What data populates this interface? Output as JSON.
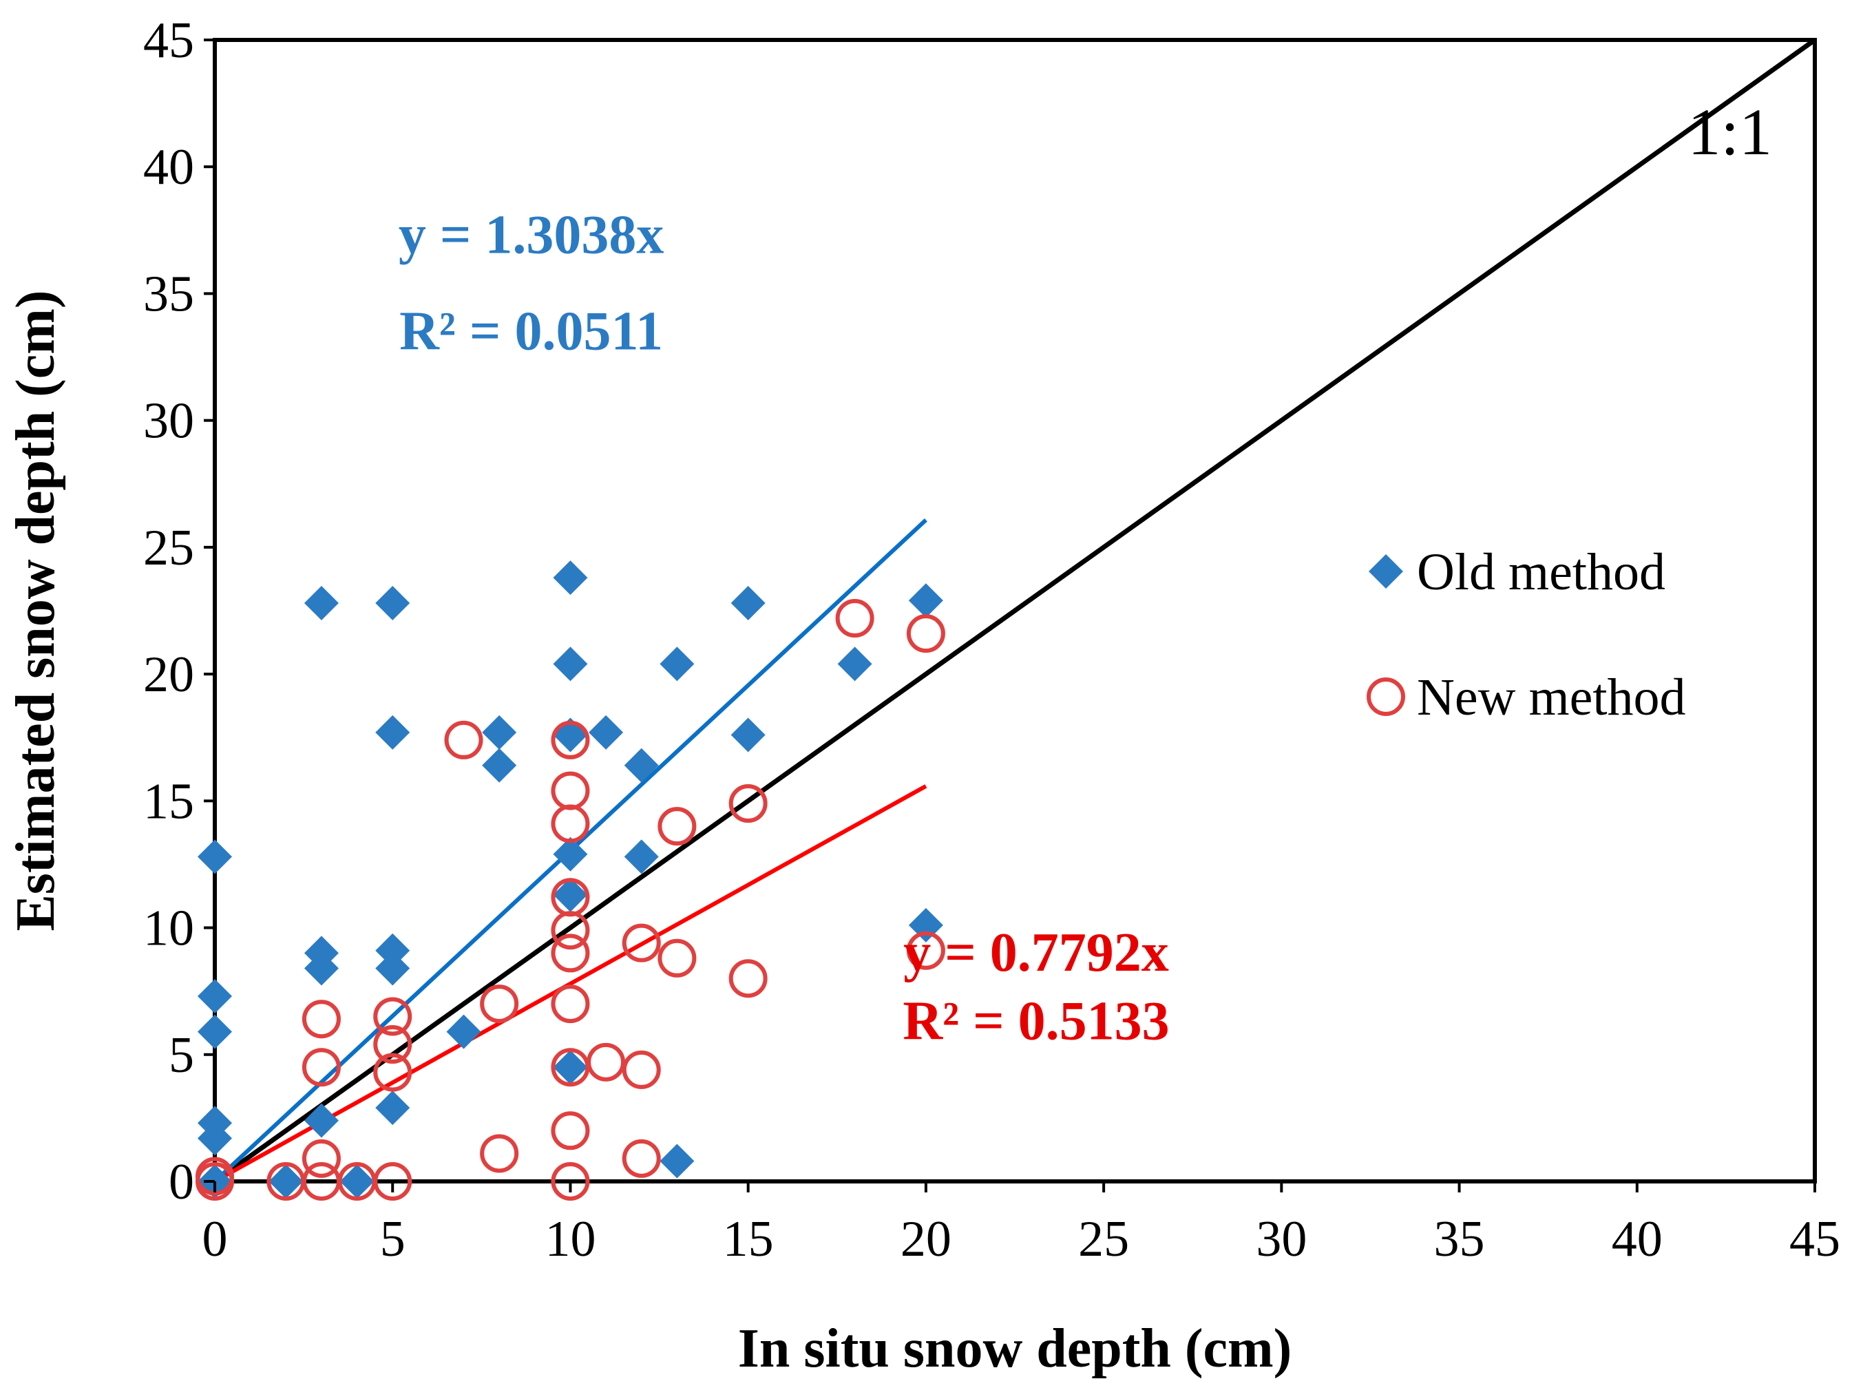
{
  "chart_data": {
    "type": "scatter",
    "title": "",
    "xlabel": "In situ snow depth (cm)",
    "ylabel": "Estimated snow depth (cm)",
    "xlim": [
      0,
      45
    ],
    "ylim": [
      0,
      45
    ],
    "xticks": [
      0,
      5,
      10,
      15,
      20,
      25,
      30,
      35,
      40,
      45
    ],
    "yticks": [
      0,
      5,
      10,
      15,
      20,
      25,
      30,
      35,
      40,
      45
    ],
    "grid": false,
    "legend_position": "right-middle",
    "series": [
      {
        "name": "Old method",
        "marker": "diamond",
        "color": "#2b7bc3",
        "points": [
          [
            0,
            12.8
          ],
          [
            0,
            7.3
          ],
          [
            0,
            5.9
          ],
          [
            0,
            2.3
          ],
          [
            0,
            1.7
          ],
          [
            0,
            0
          ],
          [
            2,
            0
          ],
          [
            3,
            22.8
          ],
          [
            3,
            9.0
          ],
          [
            3,
            8.4
          ],
          [
            3,
            2.4
          ],
          [
            4,
            0
          ],
          [
            5,
            22.8
          ],
          [
            5,
            17.7
          ],
          [
            5,
            9.1
          ],
          [
            5,
            8.4
          ],
          [
            5,
            2.9
          ],
          [
            7,
            5.9
          ],
          [
            8,
            17.7
          ],
          [
            8,
            16.4
          ],
          [
            10,
            23.8
          ],
          [
            10,
            20.4
          ],
          [
            10,
            17.6
          ],
          [
            10,
            12.9
          ],
          [
            10,
            11.3
          ],
          [
            10,
            4.5
          ],
          [
            11,
            17.7
          ],
          [
            12,
            16.4
          ],
          [
            12,
            12.8
          ],
          [
            13,
            20.4
          ],
          [
            13,
            0.8
          ],
          [
            15,
            22.8
          ],
          [
            15,
            17.6
          ],
          [
            18,
            20.4
          ],
          [
            20,
            22.9
          ],
          [
            20,
            10.1
          ]
        ]
      },
      {
        "name": "New method",
        "marker": "open-circle",
        "color": "#e04040",
        "points": [
          [
            0,
            0.2
          ],
          [
            0,
            0
          ],
          [
            2,
            0
          ],
          [
            3,
            6.4
          ],
          [
            3,
            4.5
          ],
          [
            3,
            0.9
          ],
          [
            3,
            0
          ],
          [
            4,
            0
          ],
          [
            5,
            6.5
          ],
          [
            5,
            5.4
          ],
          [
            5,
            4.3
          ],
          [
            5,
            0
          ],
          [
            7,
            17.4
          ],
          [
            8,
            7.0
          ],
          [
            8,
            1.1
          ],
          [
            10,
            17.4
          ],
          [
            10,
            15.4
          ],
          [
            10,
            14.1
          ],
          [
            10,
            11.2
          ],
          [
            10,
            9.9
          ],
          [
            10,
            9.0
          ],
          [
            10,
            7.0
          ],
          [
            10,
            4.5
          ],
          [
            10,
            2.0
          ],
          [
            10,
            0
          ],
          [
            11,
            4.7
          ],
          [
            12,
            9.4
          ],
          [
            12,
            4.4
          ],
          [
            12,
            0.9
          ],
          [
            13,
            14.0
          ],
          [
            13,
            8.8
          ],
          [
            15,
            14.9
          ],
          [
            15,
            8.0
          ],
          [
            18,
            22.2
          ],
          [
            20,
            21.6
          ],
          [
            20,
            9.1
          ]
        ]
      }
    ],
    "trendlines": [
      {
        "series": "Old method",
        "slope": 1.3038,
        "x_range": [
          0,
          20
        ],
        "color": "#0a70c8",
        "equation": "y = 1.3038x",
        "r2": "R² = 0.0511"
      },
      {
        "series": "New method",
        "slope": 0.7792,
        "x_range": [
          0,
          20
        ],
        "color": "#ff0000",
        "equation": "y = 0.7792x",
        "r2": "R² = 0.5133"
      }
    ],
    "reference_line": {
      "label": "1:1",
      "slope": 1,
      "x_range": [
        0,
        45
      ],
      "color": "#000000"
    }
  }
}
